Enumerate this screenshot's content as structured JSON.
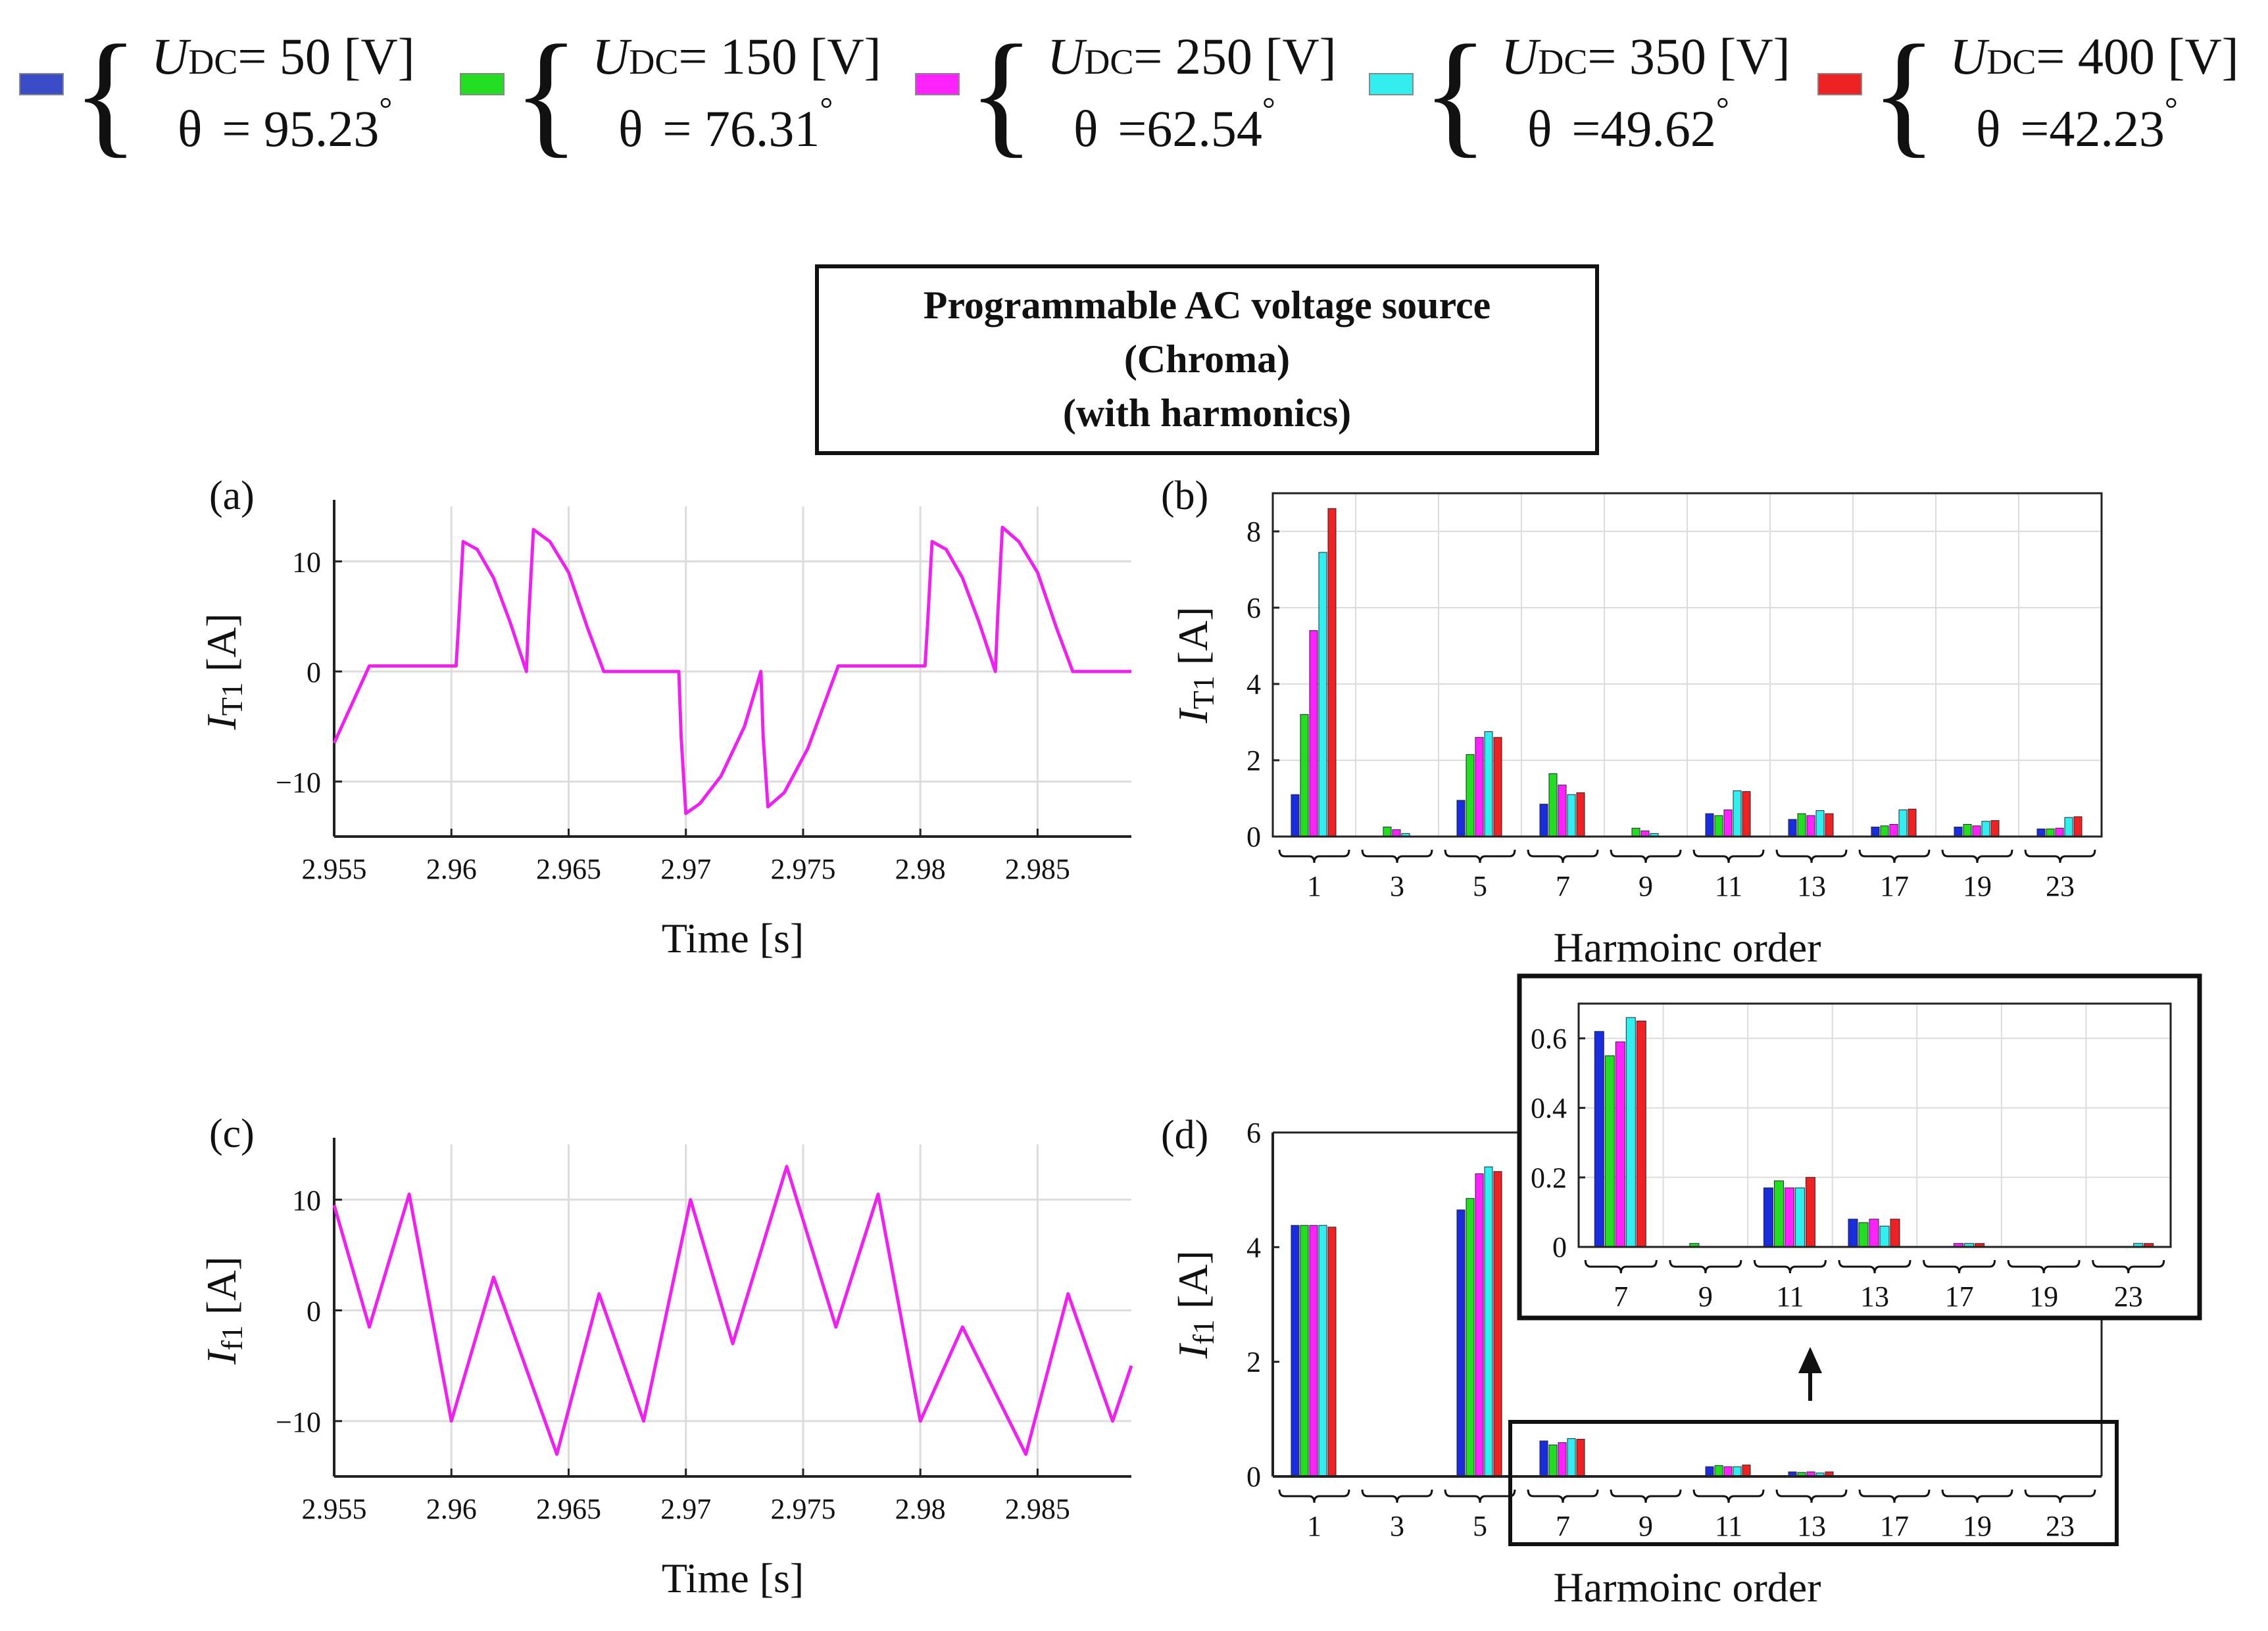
{
  "legend": {
    "entries": [
      {
        "color": "#3a4cc8",
        "u_sym": "U",
        "u_sub": "DC",
        "u_val": "= 50  [V]",
        "theta_sym": "θ",
        "theta_val": "= 95.23",
        "deg": "°"
      },
      {
        "color": "#22dd22",
        "u_sym": "U",
        "u_sub": "DC",
        "u_val": "= 150 [V]",
        "theta_sym": "θ",
        "theta_val": "= 76.31",
        "deg": "°"
      },
      {
        "color": "#ff22ff",
        "u_sym": "U",
        "u_sub": "DC",
        "u_val": "= 250 [V]",
        "theta_sym": "θ",
        "theta_val": "=62.54",
        "deg": "°"
      },
      {
        "color": "#33eeee",
        "u_sym": "U",
        "u_sub": "DC",
        "u_val": "= 350 [V]",
        "theta_sym": "θ",
        "theta_val": "=49.62",
        "deg": "°"
      },
      {
        "color": "#ee2222",
        "u_sym": "U",
        "u_sub": "DC",
        "u_val": "= 400 [V]",
        "theta_sym": "θ",
        "theta_val": "=42.23",
        "deg": "°"
      }
    ]
  },
  "title_box": {
    "line1": "Programmable AC voltage source",
    "line2": "(Chroma)",
    "line3": "(with harmonics)"
  },
  "colors": {
    "waveform": "#ee22ee",
    "grid": "#dddddd",
    "axis": "#222222"
  },
  "chart_data": [
    {
      "id": "a",
      "type": "line",
      "panel_label": "(a)",
      "xlabel": "Time [s]",
      "ylabel_sym": "I",
      "ylabel_sub": "T1",
      "ylabel_unit": " [A]",
      "xlim": [
        2.955,
        2.989
      ],
      "ylim": [
        -15,
        15
      ],
      "xticks": [
        2.955,
        2.96,
        2.965,
        2.97,
        2.975,
        2.98,
        2.985
      ],
      "xtick_labels": [
        "2.955",
        "2.96",
        "2.965",
        "2.97",
        "2.975",
        "2.98",
        "2.985"
      ],
      "yticks": [
        -10,
        0,
        10
      ],
      "ytick_labels": [
        "−10",
        "0",
        "10"
      ],
      "series": [
        {
          "name": "i_T1",
          "color": "#ee22ee",
          "points": [
            [
              2.955,
              -6.5
            ],
            [
              2.9565,
              0.5
            ],
            [
              2.9602,
              0.5
            ],
            [
              2.9603,
              4
            ],
            [
              2.9605,
              11.8
            ],
            [
              2.9611,
              11.1
            ],
            [
              2.9618,
              8.5
            ],
            [
              2.9625,
              4.5
            ],
            [
              2.9632,
              0
            ],
            [
              2.9633,
              5
            ],
            [
              2.9635,
              12.9
            ],
            [
              2.9642,
              11.8
            ],
            [
              2.965,
              9
            ],
            [
              2.9658,
              4
            ],
            [
              2.9665,
              0
            ],
            [
              2.9697,
              0
            ],
            [
              2.9698,
              -6
            ],
            [
              2.97,
              -12.9
            ],
            [
              2.9706,
              -12
            ],
            [
              2.9715,
              -9.5
            ],
            [
              2.9725,
              -5
            ],
            [
              2.9732,
              0
            ],
            [
              2.9733,
              -6
            ],
            [
              2.9735,
              -12.3
            ],
            [
              2.9742,
              -11
            ],
            [
              2.9752,
              -7
            ],
            [
              2.9765,
              0.5
            ],
            [
              2.9802,
              0.5
            ],
            [
              2.9803,
              4
            ],
            [
              2.9805,
              11.8
            ],
            [
              2.9811,
              11.1
            ],
            [
              2.9818,
              8.5
            ],
            [
              2.9825,
              4.5
            ],
            [
              2.9832,
              0
            ],
            [
              2.9833,
              5
            ],
            [
              2.9835,
              13.1
            ],
            [
              2.9842,
              11.8
            ],
            [
              2.985,
              9
            ],
            [
              2.9858,
              4
            ],
            [
              2.9865,
              0
            ],
            [
              2.989,
              0
            ]
          ]
        }
      ]
    },
    {
      "id": "b",
      "type": "bar",
      "panel_label": "(b)",
      "xlabel": "Harmoinc order",
      "ylabel_sym": "I",
      "ylabel_sub": "T1",
      "ylabel_unit": " [A]",
      "ylim": [
        0,
        9
      ],
      "yticks": [
        0,
        2,
        4,
        6,
        8
      ],
      "ytick_labels": [
        "0",
        "2",
        "4",
        "6",
        "8"
      ],
      "categories": [
        "1",
        "3",
        "5",
        "7",
        "9",
        "11",
        "13",
        "17",
        "19",
        "23"
      ],
      "series": [
        {
          "name": "UDC=50",
          "color": "#1a2ddc",
          "values": [
            1.1,
            0.0,
            0.95,
            0.85,
            0.0,
            0.6,
            0.45,
            0.25,
            0.25,
            0.2
          ]
        },
        {
          "name": "UDC=150",
          "color": "#22dd22",
          "values": [
            3.2,
            0.25,
            2.15,
            1.65,
            0.22,
            0.55,
            0.6,
            0.28,
            0.32,
            0.2
          ]
        },
        {
          "name": "UDC=250",
          "color": "#ff22ff",
          "values": [
            5.4,
            0.18,
            2.6,
            1.35,
            0.15,
            0.7,
            0.55,
            0.32,
            0.28,
            0.22
          ]
        },
        {
          "name": "UDC=350",
          "color": "#33eeee",
          "values": [
            7.45,
            0.08,
            2.75,
            1.1,
            0.08,
            1.2,
            0.68,
            0.7,
            0.4,
            0.5
          ]
        },
        {
          "name": "UDC=400",
          "color": "#ee2222",
          "values": [
            8.6,
            0.0,
            2.6,
            1.15,
            0.0,
            1.18,
            0.6,
            0.72,
            0.42,
            0.52
          ]
        }
      ]
    },
    {
      "id": "c",
      "type": "line",
      "panel_label": "(c)",
      "xlabel": "Time [s]",
      "ylabel_sym": "I",
      "ylabel_sub": "f1",
      "ylabel_unit": " [A]",
      "xlim": [
        2.955,
        2.989
      ],
      "ylim": [
        -15,
        15
      ],
      "xticks": [
        2.955,
        2.96,
        2.965,
        2.97,
        2.975,
        2.98,
        2.985
      ],
      "xtick_labels": [
        "2.955",
        "2.96",
        "2.965",
        "2.97",
        "2.975",
        "2.98",
        "2.985"
      ],
      "yticks": [
        -10,
        0,
        10
      ],
      "ytick_labels": [
        "−10",
        "0",
        "10"
      ],
      "series": [
        {
          "name": "i_f1",
          "color": "#ee22ee",
          "points": [
            [
              2.955,
              9.5
            ],
            [
              2.9565,
              -1.5
            ],
            [
              2.9582,
              10.5
            ],
            [
              2.96,
              -10
            ],
            [
              2.9618,
              3
            ],
            [
              2.9645,
              -13
            ],
            [
              2.9663,
              1.5
            ],
            [
              2.9682,
              -10
            ],
            [
              2.9702,
              10
            ],
            [
              2.972,
              -3
            ],
            [
              2.9743,
              13
            ],
            [
              2.9764,
              -1.5
            ],
            [
              2.9782,
              10.5
            ],
            [
              2.98,
              -10
            ],
            [
              2.9818,
              -1.5
            ],
            [
              2.9845,
              -13
            ],
            [
              2.9863,
              1.5
            ],
            [
              2.9882,
              -10
            ],
            [
              2.989,
              -5
            ]
          ]
        }
      ]
    },
    {
      "id": "d",
      "type": "bar",
      "panel_label": "(d)",
      "xlabel": "Harmoinc order",
      "ylabel_sym": "I",
      "ylabel_sub": "f1",
      "ylabel_unit": " [A]",
      "ylim": [
        0,
        6
      ],
      "yticks": [
        0,
        2,
        4,
        6
      ],
      "ytick_labels": [
        "0",
        "2",
        "4",
        "6"
      ],
      "categories": [
        "1",
        "3",
        "5",
        "7",
        "9",
        "11",
        "13",
        "17",
        "19",
        "23"
      ],
      "series": [
        {
          "name": "UDC=50",
          "color": "#1a2ddc",
          "values": [
            4.38,
            0.0,
            4.65,
            0.62,
            0.0,
            0.17,
            0.08,
            0.0,
            0.0,
            0.0
          ]
        },
        {
          "name": "UDC=150",
          "color": "#22dd22",
          "values": [
            4.38,
            0.0,
            4.85,
            0.55,
            0.01,
            0.19,
            0.07,
            0.0,
            0.0,
            0.0
          ]
        },
        {
          "name": "UDC=250",
          "color": "#ff22ff",
          "values": [
            4.38,
            0.0,
            5.28,
            0.59,
            0.0,
            0.17,
            0.08,
            0.01,
            0.0,
            0.0
          ]
        },
        {
          "name": "UDC=350",
          "color": "#33eeee",
          "values": [
            4.38,
            0.0,
            5.4,
            0.66,
            0.0,
            0.17,
            0.06,
            0.01,
            0.0,
            0.01
          ]
        },
        {
          "name": "UDC=400",
          "color": "#ee2222",
          "values": [
            4.35,
            0.0,
            5.32,
            0.65,
            0.0,
            0.2,
            0.08,
            0.01,
            0.0,
            0.01
          ]
        }
      ]
    },
    {
      "id": "d_inset",
      "type": "bar",
      "panel_label": "",
      "ylim": [
        0,
        0.7
      ],
      "yticks": [
        0,
        0.2,
        0.4,
        0.6
      ],
      "ytick_labels": [
        "0",
        "0.2",
        "0.4",
        "0.6"
      ],
      "categories": [
        "7",
        "9",
        "11",
        "13",
        "17",
        "19",
        "23"
      ],
      "series": [
        {
          "name": "UDC=50",
          "color": "#1a2ddc",
          "values": [
            0.62,
            0.0,
            0.17,
            0.08,
            0.0,
            0.0,
            0.0
          ]
        },
        {
          "name": "UDC=150",
          "color": "#22dd22",
          "values": [
            0.55,
            0.01,
            0.19,
            0.07,
            0.0,
            0.0,
            0.0
          ]
        },
        {
          "name": "UDC=250",
          "color": "#ff22ff",
          "values": [
            0.59,
            0.0,
            0.17,
            0.08,
            0.01,
            0.0,
            0.0
          ]
        },
        {
          "name": "UDC=350",
          "color": "#33eeee",
          "values": [
            0.66,
            0.0,
            0.17,
            0.06,
            0.01,
            0.0,
            0.01
          ]
        },
        {
          "name": "UDC=400",
          "color": "#ee2222",
          "values": [
            0.65,
            0.0,
            0.2,
            0.08,
            0.01,
            0.0,
            0.01
          ]
        }
      ]
    }
  ]
}
